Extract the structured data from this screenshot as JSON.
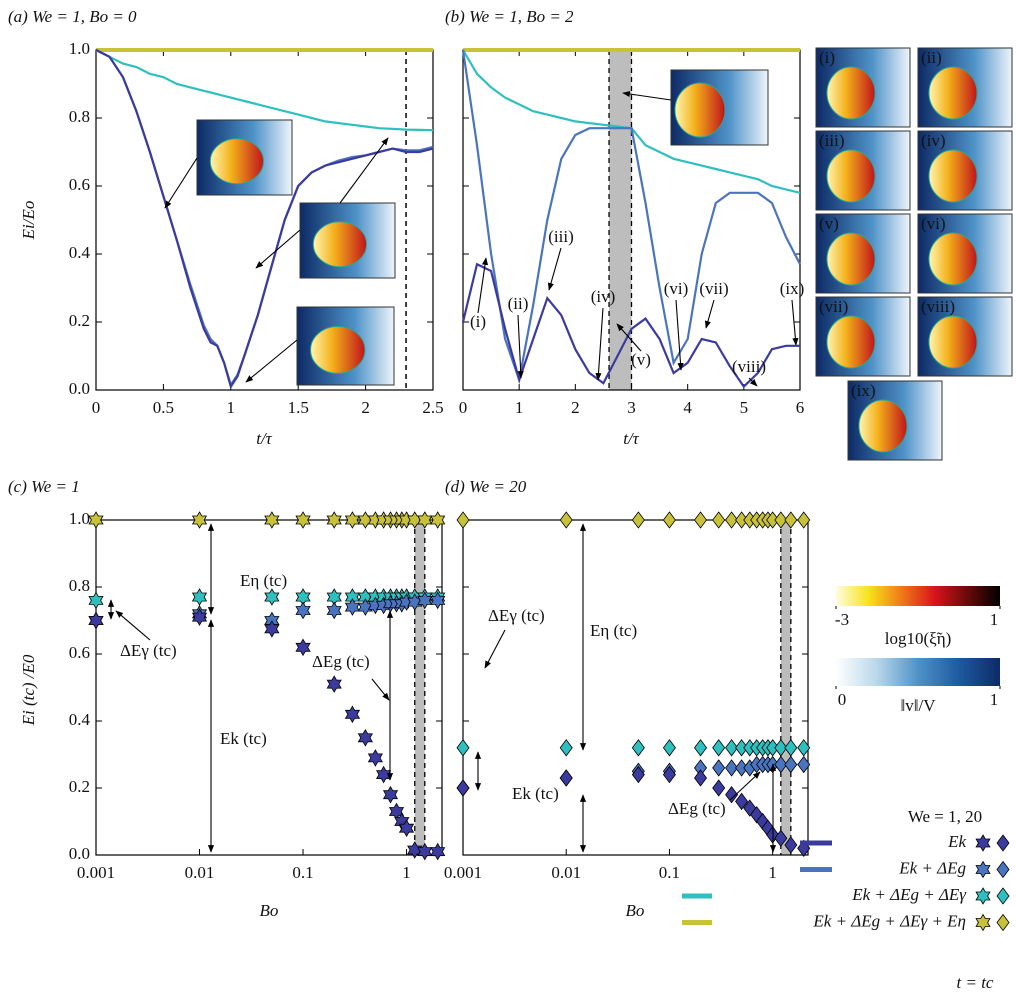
{
  "chart_data": [
    {
      "type": "line",
      "title": "(a) We = 1, Bo = 0",
      "xlabel": "t/τ",
      "ylabel": "Ei/Eo",
      "xlim": [
        0,
        2.5
      ],
      "ylim": [
        0,
        1
      ],
      "xticks": [
        0,
        0.5,
        1,
        1.5,
        2,
        2.5
      ],
      "yticks": [
        {
          "value": 0,
          "label": "0.0"
        },
        0.2,
        0.4,
        0.6,
        0.8,
        {
          "value": 1,
          "label": "1.0"
        }
      ],
      "ytick_labels": true,
      "vlines": [
        2.3
      ],
      "x": [
        0,
        0.1,
        0.2,
        0.3,
        0.4,
        0.5,
        0.6,
        0.7,
        0.8,
        0.85,
        0.9,
        0.95,
        1,
        1.05,
        1.1,
        1.2,
        1.3,
        1.4,
        1.5,
        1.6,
        1.7,
        1.8,
        1.9,
        2,
        2.1,
        2.2,
        2.3,
        2.4,
        2.5
      ],
      "series": [
        {
          "color": "#c8c23a",
          "values": [
            1,
            1,
            1,
            1,
            1,
            1,
            1,
            1,
            1,
            1,
            1,
            1,
            1,
            1,
            1,
            1,
            1,
            1,
            1,
            1,
            1,
            1,
            1,
            1,
            1,
            1,
            1,
            1,
            1
          ]
        },
        {
          "color": "#2fbfbf",
          "values": [
            1,
            0.98,
            0.96,
            0.95,
            0.93,
            0.92,
            0.9,
            0.89,
            0.88,
            0.875,
            0.87,
            0.865,
            0.86,
            0.855,
            0.85,
            0.84,
            0.83,
            0.82,
            0.81,
            0.8,
            0.79,
            0.785,
            0.78,
            0.775,
            0.77,
            0.768,
            0.766,
            0.765,
            0.764
          ]
        },
        {
          "color": "#4a74c0",
          "values": [
            1,
            0.98,
            0.92,
            0.82,
            0.7,
            0.57,
            0.44,
            0.31,
            0.19,
            0.15,
            0.13,
            0.08,
            0.015,
            0.045,
            0.1,
            0.22,
            0.36,
            0.5,
            0.6,
            0.64,
            0.66,
            0.675,
            0.685,
            0.69,
            0.7,
            0.71,
            0.705,
            0.705,
            0.715
          ]
        },
        {
          "color": "#3b3b9e",
          "values": [
            1,
            0.98,
            0.92,
            0.82,
            0.7,
            0.57,
            0.44,
            0.3,
            0.18,
            0.14,
            0.13,
            0.08,
            0.01,
            0.04,
            0.1,
            0.22,
            0.36,
            0.5,
            0.6,
            0.64,
            0.66,
            0.67,
            0.68,
            0.69,
            0.7,
            0.71,
            0.7,
            0.7,
            0.71
          ]
        }
      ]
    },
    {
      "type": "line",
      "title": "(b) We = 1, Bo = 2",
      "xlabel": "t/τ",
      "xlim": [
        0,
        6
      ],
      "ylim": [
        0,
        1
      ],
      "xticks": [
        0,
        1,
        2,
        3,
        4,
        5,
        6
      ],
      "yticks": [
        0,
        0.2,
        0.4,
        0.6,
        0.8,
        1
      ],
      "ytick_labels": false,
      "shaded_region": [
        2.6,
        3
      ],
      "annotations": [
        "(i)",
        "(ii)",
        "(iii)",
        "(iv)",
        "(v)",
        "(vi)",
        "(vii)",
        "(viii)",
        "(ix)"
      ],
      "x": [
        0,
        0.25,
        0.5,
        0.75,
        1,
        1.25,
        1.5,
        1.75,
        2,
        2.25,
        2.5,
        2.75,
        3,
        3.25,
        3.5,
        3.75,
        4,
        4.25,
        4.5,
        4.75,
        5,
        5.25,
        5.5,
        5.75,
        6
      ],
      "series": [
        {
          "color": "#c8c23a",
          "values": [
            1,
            1,
            1,
            1,
            1,
            1,
            1,
            1,
            1,
            1,
            1,
            1,
            1,
            1,
            1,
            1,
            1,
            1,
            1,
            1,
            1,
            1,
            1,
            1,
            1
          ]
        },
        {
          "color": "#2fbfbf",
          "values": [
            1,
            0.93,
            0.89,
            0.86,
            0.84,
            0.82,
            0.81,
            0.8,
            0.79,
            0.785,
            0.78,
            0.775,
            0.77,
            0.72,
            0.7,
            0.68,
            0.67,
            0.66,
            0.65,
            0.64,
            0.63,
            0.62,
            0.6,
            0.59,
            0.58
          ]
        },
        {
          "color": "#4a74c0",
          "values": [
            1,
            0.72,
            0.4,
            0.15,
            0.03,
            0.25,
            0.5,
            0.68,
            0.75,
            0.77,
            0.77,
            0.77,
            0.77,
            0.55,
            0.3,
            0.08,
            0.15,
            0.4,
            0.55,
            0.58,
            0.58,
            0.58,
            0.55,
            0.45,
            0.37
          ]
        },
        {
          "color": "#3b3b9e",
          "values": [
            0.2,
            0.37,
            0.35,
            0.18,
            0.03,
            0.15,
            0.27,
            0.22,
            0.12,
            0.05,
            0.02,
            0.1,
            0.18,
            0.21,
            0.15,
            0.05,
            0.08,
            0.15,
            0.14,
            0.07,
            0.01,
            0.05,
            0.12,
            0.13,
            0.13
          ]
        }
      ]
    },
    {
      "type": "scatter",
      "title": "(c) We = 1",
      "xlabel": "Bo",
      "ylabel": "Ei (tc) /E0",
      "xscale": "log",
      "marker": "star",
      "xlim": [
        0.001,
        2.2
      ],
      "ylim": [
        0,
        1
      ],
      "xticks": [
        0.001,
        0.01,
        0.1,
        1
      ],
      "yticks": [
        {
          "value": 0,
          "label": "0.0"
        },
        0.2,
        0.4,
        0.6,
        0.8,
        {
          "value": 1,
          "label": "1.0"
        }
      ],
      "ytick_labels": true,
      "shaded_region": [
        1.2,
        1.5
      ],
      "annotations": [
        "Eη (tc)",
        "ΔEγ (tc)",
        "ΔEg (tc)",
        "Ek (tc)"
      ],
      "x": [
        0.001,
        0.01,
        0.05,
        0.1,
        0.2,
        0.3,
        0.4,
        0.5,
        0.6,
        0.7,
        0.8,
        0.9,
        1,
        1.2,
        1.5,
        2
      ],
      "series": [
        {
          "color": "#c8c23a",
          "values": [
            1,
            1,
            1,
            1,
            1,
            1,
            1,
            1,
            1,
            1,
            1,
            1,
            1,
            1,
            1,
            1
          ]
        },
        {
          "color": "#2fbfbf",
          "values": [
            0.76,
            0.77,
            0.77,
            0.77,
            0.77,
            0.77,
            0.77,
            0.77,
            0.77,
            0.77,
            0.77,
            0.77,
            0.77,
            0.77,
            0.77,
            0.77
          ]
        },
        {
          "color": "#4a74c0",
          "values": [
            0.7,
            0.72,
            0.7,
            0.73,
            0.73,
            0.74,
            0.74,
            0.745,
            0.745,
            0.75,
            0.75,
            0.75,
            0.755,
            0.755,
            0.76,
            0.76
          ]
        },
        {
          "color": "#3b3b9e",
          "values": [
            0.7,
            0.71,
            0.675,
            0.62,
            0.51,
            0.42,
            0.35,
            0.29,
            0.24,
            0.18,
            0.13,
            0.1,
            0.08,
            0.015,
            0.01,
            0.01
          ]
        }
      ]
    },
    {
      "type": "scatter",
      "title": "(d) We = 20",
      "xlabel": "Bo",
      "xscale": "log",
      "marker": "diamond",
      "xlim": [
        0.001,
        2.2
      ],
      "ylim": [
        0,
        1
      ],
      "xticks": [
        0.001,
        0.01,
        0.1,
        1
      ],
      "yticks": [
        0,
        0.2,
        0.4,
        0.6,
        0.8,
        1
      ],
      "ytick_labels": false,
      "shaded_region": [
        1.2,
        1.5
      ],
      "annotations": [
        "Eη (tc)",
        "ΔEγ (tc)",
        "ΔEg (tc)",
        "Ek (tc)"
      ],
      "x": [
        0.001,
        0.01,
        0.05,
        0.1,
        0.2,
        0.3,
        0.4,
        0.5,
        0.6,
        0.7,
        0.8,
        0.9,
        1,
        1.2,
        1.5,
        2
      ],
      "series": [
        {
          "color": "#c8c23a",
          "values": [
            1,
            1,
            1,
            1,
            1,
            1,
            1,
            1,
            1,
            1,
            1,
            1,
            1,
            1,
            1,
            1
          ]
        },
        {
          "color": "#2fbfbf",
          "values": [
            0.32,
            0.32,
            0.32,
            0.32,
            0.32,
            0.32,
            0.32,
            0.32,
            0.32,
            0.32,
            0.32,
            0.32,
            0.32,
            0.32,
            0.32,
            0.32
          ]
        },
        {
          "color": "#4a74c0",
          "values": [
            0.2,
            0.23,
            0.25,
            0.25,
            0.26,
            0.26,
            0.26,
            0.26,
            0.26,
            0.27,
            0.27,
            0.27,
            0.27,
            0.27,
            0.27,
            0.27
          ]
        },
        {
          "color": "#3b3b9e",
          "values": [
            0.2,
            0.23,
            0.24,
            0.24,
            0.23,
            0.2,
            0.18,
            0.16,
            0.14,
            0.12,
            0.1,
            0.08,
            0.06,
            0.05,
            0.03,
            0.02
          ]
        }
      ]
    }
  ],
  "insets": [
    "(i)",
    "(ii)",
    "(iii)",
    "(iv)",
    "(v)",
    "(vi)",
    "(vii)",
    "(viii)",
    "(ix)"
  ],
  "colorbars": [
    {
      "label": "log10(ξ̃η)",
      "lim": [
        -3,
        1
      ],
      "ticks": [
        -3,
        1
      ],
      "colors": [
        "#fffde0",
        "#f7e21a",
        "#f07a18",
        "#d8141c",
        "#6a0a0a",
        "#000000"
      ]
    },
    {
      "label": "‖v‖/V",
      "lim": [
        0,
        1
      ],
      "ticks": [
        0,
        1
      ],
      "colors": [
        "#ffffff",
        "#b9d7ea",
        "#4f93c8",
        "#1d5aa0",
        "#0d2a66"
      ]
    }
  ],
  "legend": {
    "title": "We = 1, 20",
    "entries": [
      {
        "label": "Ek",
        "color": "#3b3b9e"
      },
      {
        "label": "Ek + ΔEg",
        "color": "#4a74c0"
      },
      {
        "label": "Ek + ΔEg + ΔEγ",
        "color": "#2fbfbf"
      },
      {
        "label": "Ek + ΔEg + ΔEγ + Eη",
        "color": "#c8c23a"
      }
    ],
    "note": "t = tc"
  }
}
